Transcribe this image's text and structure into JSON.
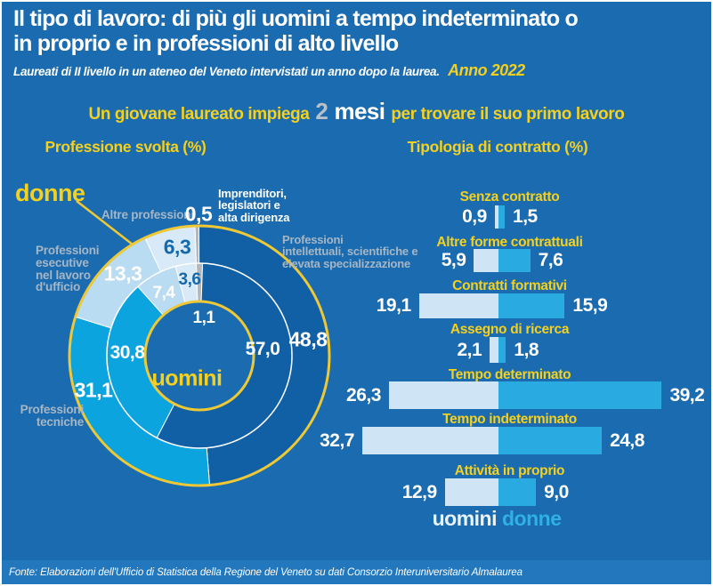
{
  "header": {
    "title_line1": "Il tipo di lavoro: di più gli uomini a tempo indeterminato o",
    "title_line2": "in proprio e in professioni di alto livello",
    "subtitle": "Laureati di II livello in un ateneo del Veneto intervistati un anno dopo la laurea.",
    "year_badge": "Anno 2022"
  },
  "banner": {
    "pre": "Un giovane laureato impiega",
    "number": "2",
    "unit": "mesi",
    "post": "per trovare il suo primo lavoro"
  },
  "sections": {
    "left_title": "Professione svolta (%)",
    "right_title": "Tipologia di contratto (%)"
  },
  "donut": {
    "donne_label": "donne",
    "uomini_label": "uomini",
    "cat_imprenditori": "Imprenditori,\nlegislatori e\nalta dirigenza",
    "cat_intellettuali": "Professioni\nintellettuali, scientifiche e\nelevata specializzazione",
    "cat_tecniche": "Professioni\ntecniche",
    "cat_esecutive": "Professioni\nesecutive\nnel lavoro\nd'ufficio",
    "cat_altre": "Altre professioni"
  },
  "legend": {
    "uomini": "uomini",
    "donne": "donne"
  },
  "footer": {
    "source": "Fonte: Elaborazioni dell'Ufficio di Statistica della Regione del Veneto su dati Consorzio Interuniversitario Almalaurea"
  },
  "colors": {
    "background": "#1a6bb0",
    "slice_dark_blue": "#1160a5",
    "slice_cyan": "#0ba4df",
    "slice_pale": "#b9dcf2",
    "slice_palest": "#d8eaf7",
    "slice_gray": "#b4b8bb",
    "ring_yellow": "#eec935",
    "text_yellow": "#f4d01f",
    "text_gray": "#a6b6c4",
    "value_on_pale": "#1468ac",
    "bar_left_uomini": "#cfe4f4",
    "bar_right_donne": "#29abe2",
    "footer_band": "#2377bc",
    "banner_number_silver": "#b9c0c8"
  },
  "chart_data": [
    {
      "type": "pie",
      "variant": "double-donut",
      "title": "Professione svolta (%)",
      "categories": [
        "Imprenditori, legislatori e alta dirigenza",
        "Professioni intellettuali, scientifiche e elevata specializzazione",
        "Professioni tecniche",
        "Professioni esecutive nel lavoro d'ufficio",
        "Altre professioni"
      ],
      "series": [
        {
          "name": "donne",
          "ring": "outer",
          "values": [
            0.5,
            48.8,
            31.1,
            13.3,
            6.3
          ]
        },
        {
          "name": "uomini",
          "ring": "inner",
          "values": [
            1.1,
            57.0,
            30.8,
            7.4,
            3.6
          ]
        }
      ],
      "value_labels": {
        "donne": [
          "0,5",
          "48,8",
          "31,1",
          "13,3",
          "6,3"
        ],
        "uomini": [
          "1,1",
          "57,0",
          "30,8",
          "7,4",
          "3,6"
        ]
      },
      "slice_colors": [
        "#b4b8bb",
        "#1160a5",
        "#0ba4df",
        "#b9dcf2",
        "#d8eaf7"
      ]
    },
    {
      "type": "bar",
      "variant": "diverging-horizontal",
      "title": "Tipologia di contratto (%)",
      "categories": [
        "Senza contratto",
        "Altre forme contrattuali",
        "Contratti formativi",
        "Assegno di ricerca",
        "Tempo determinato",
        "Tempo indeterminato",
        "Attività in proprio"
      ],
      "series": [
        {
          "name": "uomini",
          "side": "left",
          "color": "#cfe4f4",
          "values": [
            0.9,
            5.9,
            19.1,
            2.1,
            26.3,
            32.7,
            12.9
          ]
        },
        {
          "name": "donne",
          "side": "right",
          "color": "#29abe2",
          "values": [
            1.5,
            7.6,
            15.9,
            1.8,
            39.2,
            24.8,
            9.0
          ]
        }
      ],
      "value_labels": {
        "uomini": [
          "0,9",
          "5,9",
          "19,1",
          "2,1",
          "26,3",
          "32,7",
          "12,9"
        ],
        "donne": [
          "1,5",
          "7,6",
          "15,9",
          "1,8",
          "39,2",
          "24,8",
          "9,0"
        ]
      },
      "legend_position": "bottom"
    }
  ]
}
